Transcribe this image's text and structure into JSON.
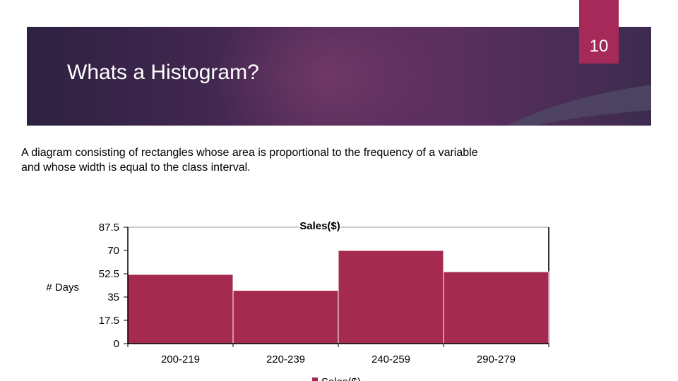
{
  "slide": {
    "number": "10",
    "title": "Whats a Histogram?",
    "definition": "A diagram consisting of rectangles whose area is proportional to the frequency of a variable and whose width is equal to the class interval."
  },
  "colors": {
    "bar": "#a52a4f",
    "accent": "#a52a5a"
  },
  "chart_data": {
    "type": "bar",
    "title": "Sales($)",
    "ylabel": "# Days",
    "xlabel": "",
    "categories": [
      "200-219",
      "220-239",
      "240-259",
      "290-279"
    ],
    "series": [
      {
        "name": "Sales($)",
        "values": [
          52,
          40,
          70,
          54
        ]
      }
    ],
    "ylim": [
      0,
      87.5
    ],
    "yticks": [
      "0",
      "17.5",
      "35",
      "52.5",
      "70",
      "87.5"
    ],
    "bar_gap": 0,
    "legend": "bottom"
  }
}
